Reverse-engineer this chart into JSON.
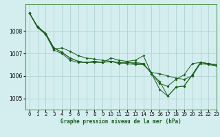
{
  "title": "Graphe pression niveau de la mer (hPa)",
  "bg_color": "#d4eef0",
  "grid_color": "#aacccc",
  "line_color": "#1a5c1a",
  "xlim": [
    -0.5,
    23
  ],
  "ylim": [
    1004.5,
    1009.2
  ],
  "yticks": [
    1005,
    1006,
    1007,
    1008
  ],
  "xticks": [
    0,
    1,
    2,
    3,
    4,
    5,
    6,
    7,
    8,
    9,
    10,
    11,
    12,
    13,
    14,
    15,
    16,
    17,
    18,
    19,
    20,
    21,
    22,
    23
  ],
  "series": [
    [
      1008.8,
      1008.2,
      1007.9,
      1007.25,
      1007.05,
      1006.8,
      1006.65,
      1006.6,
      1006.65,
      1006.6,
      1006.65,
      1006.55,
      1006.6,
      1006.55,
      1006.55,
      1006.1,
      1005.75,
      1005.1,
      1005.5,
      1005.55,
      1006.05,
      1006.6,
      1006.55,
      1006.5
    ],
    [
      1008.8,
      1008.2,
      1007.9,
      1007.25,
      1007.05,
      1006.8,
      1006.65,
      1006.6,
      1006.65,
      1006.6,
      1006.8,
      1006.7,
      1006.65,
      1006.7,
      1006.9,
      1006.1,
      1005.4,
      1005.1,
      1005.5,
      1005.55,
      1006.05,
      1006.6,
      1006.55,
      1006.5
    ],
    [
      1008.8,
      1008.2,
      1007.85,
      1007.2,
      1007.25,
      1007.1,
      1006.9,
      1006.8,
      1006.75,
      1006.7,
      1006.65,
      1006.6,
      1006.55,
      1006.5,
      1006.5,
      1006.15,
      1006.1,
      1006.0,
      1005.9,
      1005.85,
      1006.0,
      1006.55,
      1006.5,
      1006.45
    ],
    [
      1008.8,
      1008.15,
      1007.85,
      1007.15,
      1007.0,
      1006.7,
      1006.6,
      1006.6,
      1006.6,
      1006.6,
      1006.65,
      1006.6,
      1006.6,
      1006.6,
      1006.55,
      1006.1,
      1005.65,
      1005.55,
      1005.85,
      1006.05,
      1006.55,
      1006.6,
      1006.55,
      1006.45
    ]
  ]
}
